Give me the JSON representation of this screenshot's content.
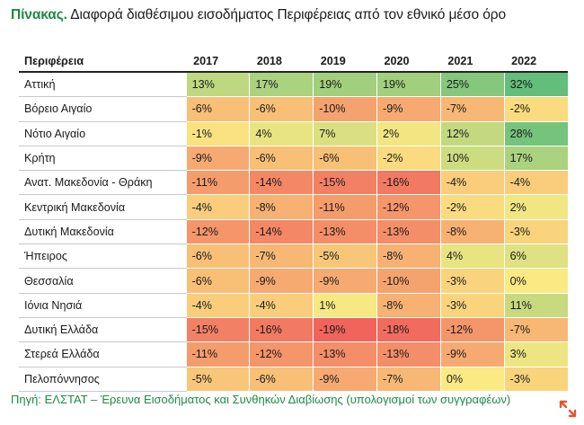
{
  "title": {
    "prefix": "Πίνακας.",
    "text": "Διαφορά διαθέσιμου εισοδήματος Περιφέρειας από τον εθνικό μέσο όρο"
  },
  "chart_data": {
    "type": "table",
    "row_header": "Περιφέρεια",
    "columns": [
      "2017",
      "2018",
      "2019",
      "2020",
      "2021",
      "2022"
    ],
    "unit": "%",
    "rows": [
      {
        "name": "Αττική",
        "values": [
          13,
          17,
          19,
          19,
          25,
          32
        ]
      },
      {
        "name": "Βόρειο Αιγαίο",
        "values": [
          -6,
          -6,
          -10,
          -9,
          -7,
          -2
        ]
      },
      {
        "name": "Νότιο Αιγαίο",
        "values": [
          -1,
          4,
          7,
          2,
          12,
          28
        ]
      },
      {
        "name": "Κρήτη",
        "values": [
          -9,
          -6,
          -6,
          -2,
          10,
          17
        ]
      },
      {
        "name": "Ανατ. Μακεδονία - Θράκη",
        "values": [
          -11,
          -14,
          -15,
          -16,
          -4,
          -4
        ]
      },
      {
        "name": "Κεντρική Μακεδονία",
        "values": [
          -4,
          -8,
          -11,
          -12,
          -2,
          2
        ]
      },
      {
        "name": "Δυτική Μακεδονία",
        "values": [
          -12,
          -14,
          -13,
          -13,
          -8,
          -3
        ]
      },
      {
        "name": "Ήπειρος",
        "values": [
          -6,
          -7,
          -5,
          -8,
          4,
          6
        ]
      },
      {
        "name": "Θεσσαλία",
        "values": [
          -6,
          -9,
          -9,
          -10,
          -3,
          0
        ]
      },
      {
        "name": "Ιόνια Νησιά",
        "values": [
          -4,
          -4,
          1,
          -8,
          -3,
          11
        ]
      },
      {
        "name": "Δυτική Ελλάδα",
        "values": [
          -15,
          -16,
          -19,
          -18,
          -12,
          -7
        ]
      },
      {
        "name": "Στερεά Ελλάδα",
        "values": [
          -11,
          -12,
          -13,
          -13,
          -9,
          3
        ]
      },
      {
        "name": "Πελοπόννησος",
        "values": [
          -5,
          -6,
          -9,
          -7,
          0,
          -3
        ]
      }
    ],
    "color_scale": {
      "min": -19,
      "mid": 0,
      "max": 32,
      "min_color": "#f0645c",
      "mid_color": "#fbe983",
      "max_color": "#63be7b"
    }
  },
  "source": {
    "label": "Πηγή:",
    "text": "ΕΛΣΤΑΤ – Έρευνα Εισοδήματος και Συνθηκών Διαβίωσης (υπολογισμοί των συγγραφέων)"
  },
  "icons": {
    "expand": "expand-icon"
  }
}
